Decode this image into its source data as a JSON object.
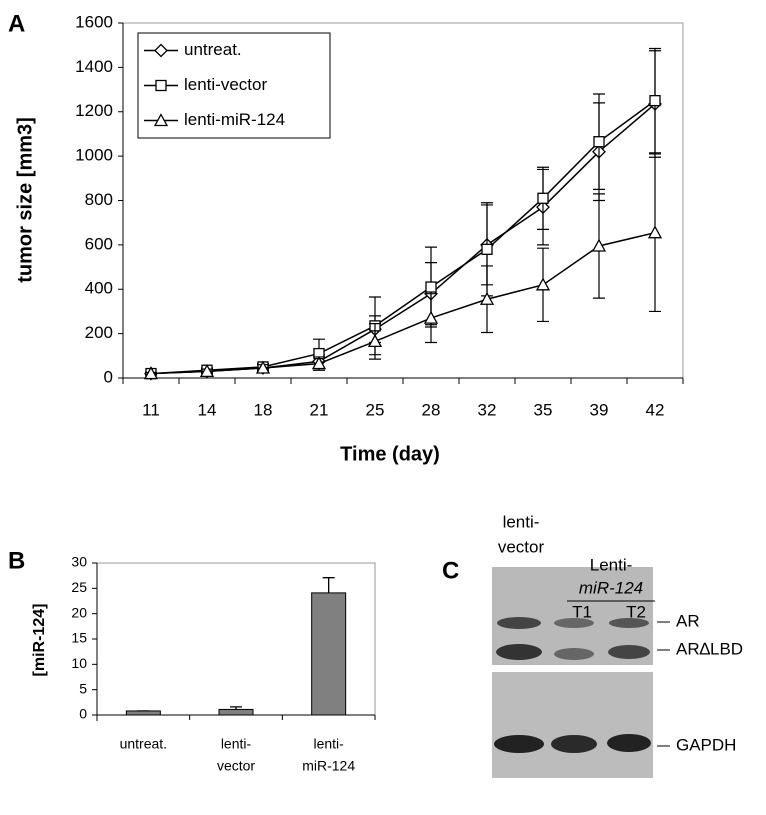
{
  "chart_data": [
    {
      "type": "line",
      "label": "A",
      "ylabel": "tumor size [mm3]",
      "xlabel": "Time (day)",
      "categories": [
        "11",
        "14",
        "18",
        "21",
        "25",
        "28",
        "32",
        "35",
        "39",
        "42"
      ],
      "ylim": [
        0,
        1600
      ],
      "yticks": [
        0,
        200,
        400,
        600,
        800,
        1000,
        1200,
        1400,
        1600
      ],
      "legend": "top-left",
      "series": [
        {
          "name": "untreat.",
          "color": "#000000",
          "marker": "diamond",
          "values": [
            20,
            30,
            45,
            75,
            220,
            380,
            600,
            770,
            1020,
            1235
          ],
          "errors": [
            5,
            10,
            15,
            30,
            60,
            140,
            180,
            170,
            220,
            240
          ]
        },
        {
          "name": "lenti-vector",
          "color": "#000000",
          "marker": "square",
          "values": [
            20,
            35,
            50,
            110,
            235,
            410,
            580,
            810,
            1065,
            1250
          ],
          "errors": [
            5,
            10,
            15,
            65,
            130,
            180,
            210,
            140,
            215,
            235
          ]
        },
        {
          "name": "lenti-miR-124",
          "color": "#000000",
          "marker": "triangle",
          "values": [
            20,
            30,
            45,
            65,
            165,
            270,
            355,
            420,
            595,
            655
          ],
          "errors": [
            5,
            10,
            15,
            30,
            80,
            110,
            150,
            165,
            235,
            355
          ]
        }
      ]
    },
    {
      "type": "bar",
      "label": "B",
      "ylabel": "[miR-124]",
      "categories": [
        [
          "untreat."
        ],
        [
          "lenti-",
          "vector"
        ],
        [
          "lenti-",
          "miR-124"
        ]
      ],
      "values": [
        0.8,
        1.1,
        24.1
      ],
      "errors": [
        0,
        0.5,
        3.0
      ],
      "color": "#808080",
      "ylim": [
        0,
        30
      ],
      "yticks": [
        0,
        5,
        10,
        15,
        20,
        25,
        30
      ]
    }
  ],
  "blot": {
    "label": "C",
    "lane_1": [
      "lenti-",
      "vector"
    ],
    "group": "Lenti-",
    "group_italic": "miR-124",
    "lane_2": "T1",
    "lane_3": "T2",
    "bands": [
      "AR",
      "AR∆LBD",
      "GAPDH"
    ]
  }
}
